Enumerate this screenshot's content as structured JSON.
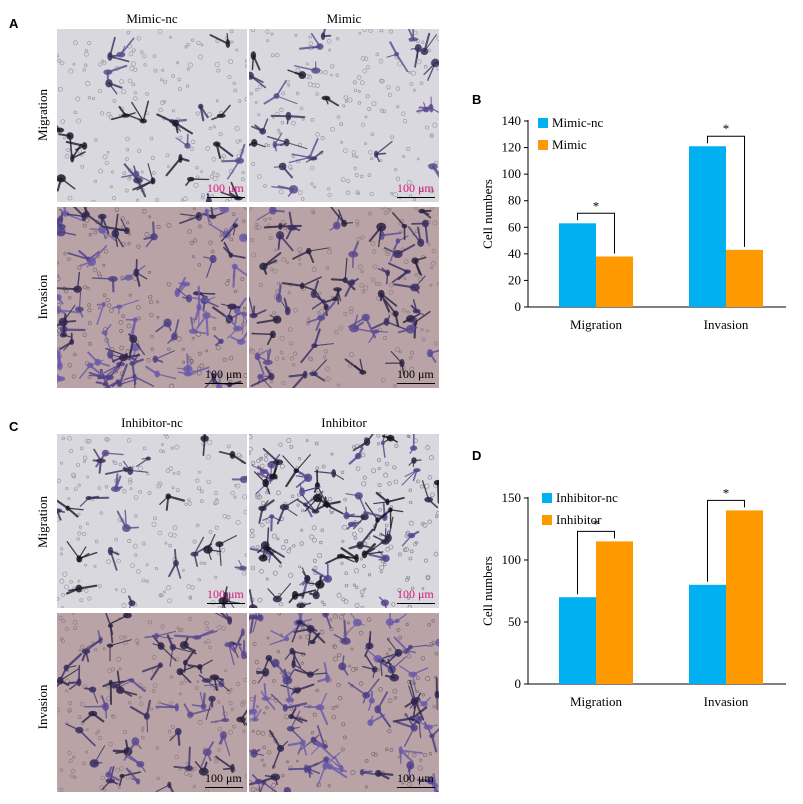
{
  "panels": {
    "A": {
      "letter": "A",
      "columns": [
        "Mimic-nc",
        "Mimic"
      ],
      "rows": [
        "Migration",
        "Invasion"
      ],
      "scale_bars": [
        "100 μm",
        "100 μm",
        "100 μm",
        "100 μm"
      ]
    },
    "C": {
      "letter": "C",
      "columns": [
        "Inhibitor-nc",
        "Inhibitor"
      ],
      "rows": [
        "Migration",
        "Invasion"
      ],
      "scale_bars": [
        "100 μm",
        "100 μm",
        "100 μm",
        "100 μm"
      ]
    }
  },
  "colors": {
    "series1": "#00b0f0",
    "series2": "#ff9900",
    "scale_pink": "#d4187a"
  },
  "chart_data": [
    {
      "panel": "B",
      "type": "bar",
      "categories": [
        "Migration",
        "Invasion"
      ],
      "series": [
        {
          "name": "Mimic-nc",
          "values": [
            63,
            121
          ]
        },
        {
          "name": "Mimic",
          "values": [
            38,
            43
          ]
        }
      ],
      "ylabel": "Cell numbers",
      "ylim": [
        0,
        140
      ],
      "yticks": [
        "0",
        "20",
        "40",
        "60",
        "80",
        "100",
        "120",
        "140"
      ],
      "annotations": [
        "*",
        "*"
      ],
      "legend": "top-left",
      "grid": false
    },
    {
      "panel": "D",
      "type": "bar",
      "categories": [
        "Migration",
        "Invasion"
      ],
      "series": [
        {
          "name": "Inhibitor-nc",
          "values": [
            70,
            80
          ]
        },
        {
          "name": "Inhibitor",
          "values": [
            115,
            140
          ]
        }
      ],
      "ylabel": "Cell numbers",
      "ylim": [
        0,
        150
      ],
      "yticks": [
        "0",
        "50",
        "100",
        "150"
      ],
      "annotations": [
        "*",
        "*"
      ],
      "legend": "top-left",
      "grid": false
    }
  ]
}
